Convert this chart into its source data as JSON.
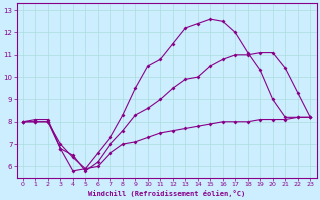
{
  "xlabel": "Windchill (Refroidissement éolien,°C)",
  "bg_color": "#cceeff",
  "line_color": "#880088",
  "grid_color": "#aadddd",
  "xlim": [
    -0.5,
    23.5
  ],
  "ylim": [
    5.5,
    13.3
  ],
  "xticks": [
    0,
    1,
    2,
    3,
    4,
    5,
    6,
    7,
    8,
    9,
    10,
    11,
    12,
    13,
    14,
    15,
    16,
    17,
    18,
    19,
    20,
    21,
    22,
    23
  ],
  "yticks": [
    6,
    7,
    8,
    9,
    10,
    11,
    12,
    13
  ],
  "line1_x": [
    0,
    1,
    2,
    3,
    4,
    5,
    6,
    7,
    8,
    9,
    10,
    11,
    12,
    13,
    14,
    15,
    16,
    17,
    18,
    19,
    20,
    21,
    22,
    23
  ],
  "line1_y": [
    8.0,
    8.1,
    8.1,
    6.8,
    5.8,
    5.9,
    6.6,
    7.3,
    8.3,
    9.5,
    10.5,
    10.8,
    11.5,
    12.2,
    12.4,
    12.6,
    12.5,
    12.0,
    11.1,
    10.3,
    9.0,
    8.2,
    8.2,
    8.2
  ],
  "line2_x": [
    0,
    1,
    2,
    3,
    4,
    5,
    6,
    7,
    8,
    9,
    10,
    11,
    12,
    13,
    14,
    15,
    16,
    17,
    18,
    19,
    20,
    21,
    22,
    23
  ],
  "line2_y": [
    8.0,
    8.0,
    8.0,
    6.8,
    6.5,
    5.8,
    6.2,
    7.0,
    7.6,
    8.3,
    8.6,
    9.0,
    9.5,
    9.9,
    10.0,
    10.5,
    10.8,
    11.0,
    11.0,
    11.1,
    11.1,
    10.4,
    9.3,
    8.2
  ],
  "line3_x": [
    0,
    1,
    2,
    3,
    4,
    5,
    6,
    7,
    8,
    9,
    10,
    11,
    12,
    13,
    14,
    15,
    16,
    17,
    18,
    19,
    20,
    21,
    22,
    23
  ],
  "line3_y": [
    8.0,
    8.0,
    8.0,
    7.0,
    6.4,
    5.9,
    6.0,
    6.6,
    7.0,
    7.1,
    7.3,
    7.5,
    7.6,
    7.7,
    7.8,
    7.9,
    8.0,
    8.0,
    8.0,
    8.1,
    8.1,
    8.1,
    8.2,
    8.2
  ]
}
